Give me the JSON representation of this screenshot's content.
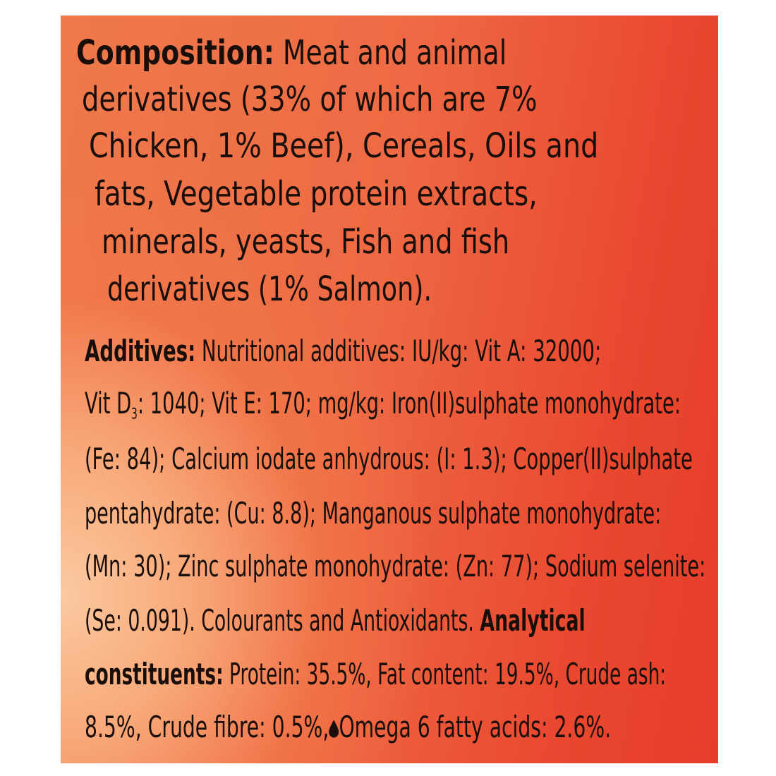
{
  "composition": {
    "label": "Composition:",
    "lines": [
      " Meat and animal",
      "derivatives (33% of which are 7%",
      "Chicken, 1% Beef), Cereals, Oils and",
      "fats, Vegetable protein extracts,",
      "minerals, yeasts, Fish and fish",
      "derivatives (1% Salmon)."
    ]
  },
  "additives": {
    "label": "Additives:",
    "line1": " Nutritional additives: IU/kg: Vit A: 32000;",
    "line2a": "Vit D",
    "line2sub": "3",
    "line2b": ": 1040; Vit E: 170; mg/kg: Iron(II)sulphate monohydrate:",
    "line3": "(Fe: 84); Calcium iodate anhydrous: (I: 1.3); Copper(II)sulphate",
    "line4": "pentahydrate: (Cu: 8.8); Manganous sulphate monohydrate:",
    "line5": "(Mn: 30); Zinc sulphate monohydrate: (Zn: 77); Sodium selenite:",
    "line6": "(Se: 0.091). Colourants and Antioxidants. ",
    "analytical_label_1": "Analytical",
    "analytical_label_2": "constituents:",
    "line7": " Protein: 35.5%, Fat content: 19.5%, Crude ash:",
    "line8a": "8.5%, Crude fibre: 0.5%,",
    "line8_icon": "oil-drop-icon",
    "line8b": "Omega 6 fatty acids: 2.6%."
  },
  "colors": {
    "text": "#1a0e0a",
    "background_red": "#e63d2b",
    "background_peach": "#fbc9a0"
  }
}
